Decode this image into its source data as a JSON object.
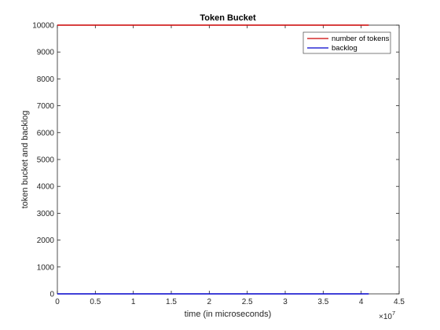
{
  "chart_data": {
    "type": "line",
    "title": "Token Bucket",
    "xlabel": "time (in microseconds)",
    "ylabel": "token bucket and backlog",
    "x_exponent_label": "×10",
    "x_exponent_power": "7",
    "xlim": [
      0,
      4.5
    ],
    "ylim": [
      0,
      10000
    ],
    "x_scale": 10000000,
    "x_ticks": [
      0,
      0.5,
      1,
      1.5,
      2,
      2.5,
      3,
      3.5,
      4,
      4.5
    ],
    "x_tick_labels": [
      "0",
      "0.5",
      "1",
      "1.5",
      "2",
      "2.5",
      "3",
      "3.5",
      "4",
      "4.5"
    ],
    "y_ticks": [
      0,
      1000,
      2000,
      3000,
      4000,
      5000,
      6000,
      7000,
      8000,
      9000,
      10000
    ],
    "y_tick_labels": [
      "0",
      "1000",
      "2000",
      "3000",
      "4000",
      "5000",
      "6000",
      "7000",
      "8000",
      "9000",
      "10000"
    ],
    "grid": false,
    "legend_location": "top-right",
    "series": [
      {
        "name": "number of tokens",
        "color": "#cc0000",
        "x": [
          0,
          4.1
        ],
        "y": [
          10000,
          10000
        ]
      },
      {
        "name": "backlog",
        "color": "#0000cc",
        "x": [
          0,
          4.1
        ],
        "y": [
          0,
          0
        ]
      }
    ]
  }
}
